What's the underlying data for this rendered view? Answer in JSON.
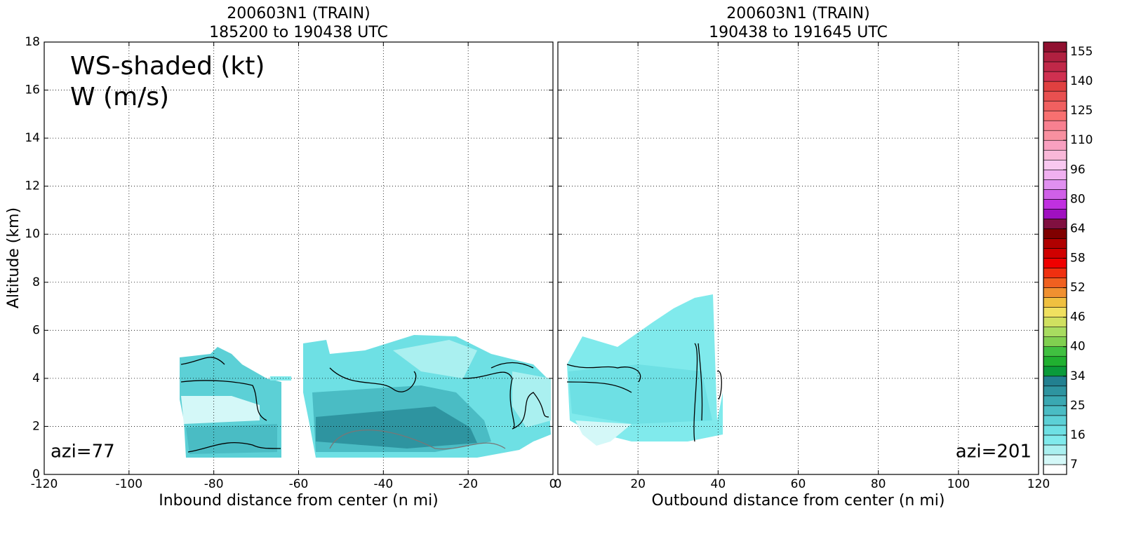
{
  "chart_data": [
    {
      "type": "contour",
      "title": "200603N1 (TRAIN)",
      "subtitle": "185200 to 190438 UTC",
      "xlabel": "Inbound distance from center (n mi)",
      "ylabel": "Altitude (km)",
      "xlim": [
        -120,
        0
      ],
      "xticks": [
        -120,
        -100,
        -80,
        -60,
        -40,
        -20,
        0
      ],
      "ylim": [
        0,
        18
      ],
      "yticks": [
        0,
        2,
        4,
        6,
        8,
        10,
        12,
        14,
        16,
        18
      ],
      "grid": true,
      "annotations": [
        "WS-shaded (kt)",
        "W (m/s)",
        "azi=77"
      ]
    },
    {
      "type": "contour",
      "title": "200603N1 (TRAIN)",
      "subtitle": "190438 to 191645 UTC",
      "xlabel": "Outbound distance from center (n mi)",
      "xlim": [
        0,
        120
      ],
      "xticks": [
        0,
        20,
        40,
        60,
        80,
        100,
        120
      ],
      "ylim": [
        0,
        18
      ],
      "yticks": [
        0,
        2,
        4,
        6,
        8,
        10,
        12,
        14,
        16,
        18
      ],
      "grid": true,
      "annotations": [
        "azi=201"
      ]
    }
  ],
  "colorbar": {
    "levels": [
      4,
      7,
      10,
      13,
      16,
      19,
      22,
      25,
      28,
      31,
      34,
      36,
      38,
      40,
      42,
      44,
      46,
      48,
      50,
      52,
      54,
      56,
      58,
      60,
      62,
      64,
      69,
      75,
      80,
      85,
      91,
      96,
      101,
      106,
      110,
      115,
      120,
      125,
      130,
      135,
      140,
      145,
      150,
      155,
      160
    ],
    "colors": [
      "#ffffff",
      "#d4f8f8",
      "#aaf0f0",
      "#80eaec",
      "#6ee0e4",
      "#5cd0d6",
      "#4abcc4",
      "#3aa8b2",
      "#2e94a0",
      "#228090",
      "#0a9a3a",
      "#20b030",
      "#40c040",
      "#80d050",
      "#a8dc60",
      "#d0e060",
      "#f0e060",
      "#f0c040",
      "#f09030",
      "#f06020",
      "#f03010",
      "#f00000",
      "#d00000",
      "#b00000",
      "#800000",
      "#801040",
      "#a010c0",
      "#c030e0",
      "#d060e8",
      "#e090f0",
      "#f0b0f0",
      "#f8c8f0",
      "#f8b8d8",
      "#f8a0c0",
      "#f890a0",
      "#f88090",
      "#f87070",
      "#f06060",
      "#e85050",
      "#e04040",
      "#d03050",
      "#c02848",
      "#b02040",
      "#901030"
    ],
    "ticks": [
      7,
      16,
      25,
      34,
      40,
      46,
      52,
      58,
      64,
      80,
      96,
      110,
      125,
      140,
      155
    ]
  }
}
